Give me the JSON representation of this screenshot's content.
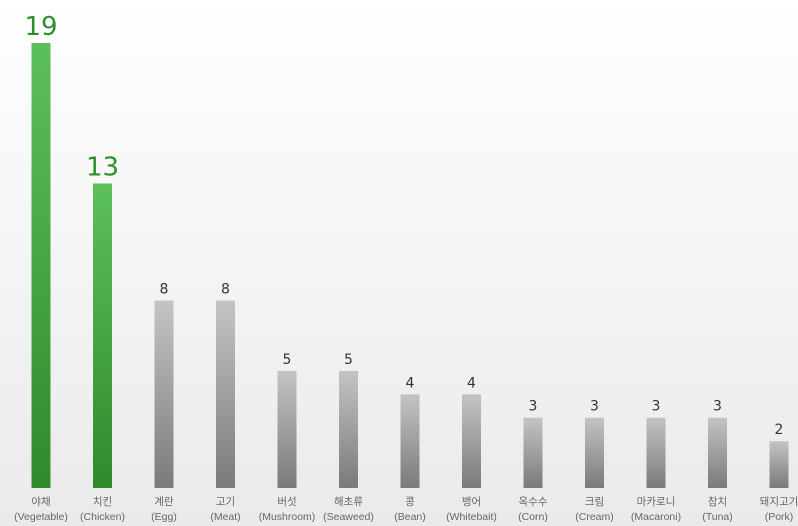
{
  "chart_data": {
    "type": "bar",
    "title": "",
    "xlabel": "",
    "ylabel": "",
    "ylim": [
      0,
      19
    ],
    "grid": false,
    "legend": "none",
    "categories": [
      {
        "ko": "야채",
        "en": "(Vegetable)"
      },
      {
        "ko": "치킨",
        "en": "(Chicken)"
      },
      {
        "ko": "계란",
        "en": "(Egg)"
      },
      {
        "ko": "고기",
        "en": "(Meat)"
      },
      {
        "ko": "버섯",
        "en": "(Mushroom)"
      },
      {
        "ko": "해초류",
        "en": "(Seaweed)"
      },
      {
        "ko": "콩",
        "en": "(Bean)"
      },
      {
        "ko": "뱅어",
        "en": "(Whitebait)"
      },
      {
        "ko": "옥수수",
        "en": "(Corn)"
      },
      {
        "ko": "크림",
        "en": "(Cream)"
      },
      {
        "ko": "마카로니",
        "en": "(Macaroni)"
      },
      {
        "ko": "참치",
        "en": "(Tuna)"
      },
      {
        "ko": "돼지고기",
        "en": "(Pork)"
      }
    ],
    "values": [
      19,
      13,
      8,
      8,
      5,
      5,
      4,
      4,
      3,
      3,
      3,
      3,
      2
    ],
    "highlight_count": 2,
    "colors": {
      "highlight_light": "#5cc05a",
      "highlight_dark": "#2f8a2e",
      "highlight_label": "#2f8f2f",
      "bar_light": "#c4c4c4",
      "bar_dark": "#7a7a7a",
      "bar_label": "#333333"
    }
  }
}
